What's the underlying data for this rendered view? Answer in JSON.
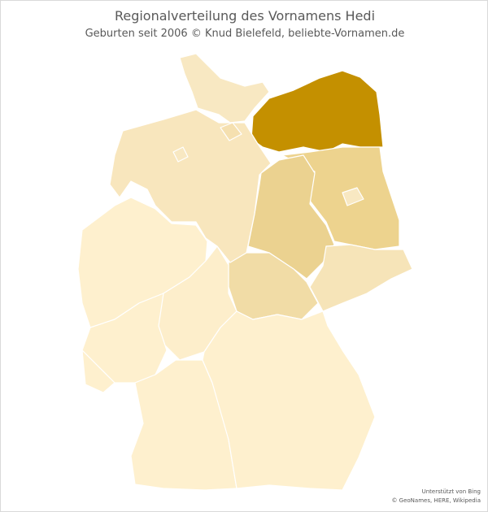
{
  "title": "Regionalverteilung des Vornamens Hedi",
  "subtitle": "Geburten  seit 2006  © Knud  Bielefeld, beliebte-Vornamen.de",
  "attribution": {
    "line1": "Unterstützt von Bing",
    "line2": "© GeoNames, HERE, Wikipedia"
  },
  "map": {
    "region": "Germany",
    "states": [
      {
        "name": "Mecklenburg-Vorpommern",
        "color": "#C49000"
      },
      {
        "name": "Brandenburg",
        "color": "#EDD38E"
      },
      {
        "name": "Sachsen-Anhalt",
        "color": "#EBD290"
      },
      {
        "name": "Berlin",
        "color": "#F8E8C2"
      },
      {
        "name": "Thüringen",
        "color": "#F1DCA6"
      },
      {
        "name": "Sachsen",
        "color": "#F6E4B8"
      },
      {
        "name": "Niedersachsen",
        "color": "#F8E6BD"
      },
      {
        "name": "Schleswig-Holstein",
        "color": "#F8E8C2"
      },
      {
        "name": "Hamburg",
        "color": "#F5E0B0"
      },
      {
        "name": "Bremen",
        "color": "#F8E8C2"
      },
      {
        "name": "Nordrhein-Westfalen",
        "color": "#FEF0CE"
      },
      {
        "name": "Hessen",
        "color": "#FDEECB"
      },
      {
        "name": "Rheinland-Pfalz",
        "color": "#FEF0CE"
      },
      {
        "name": "Saarland",
        "color": "#FEF0CE"
      },
      {
        "name": "Baden-Württemberg",
        "color": "#FEF0CE"
      },
      {
        "name": "Bayern",
        "color": "#FEF0CE"
      }
    ]
  }
}
